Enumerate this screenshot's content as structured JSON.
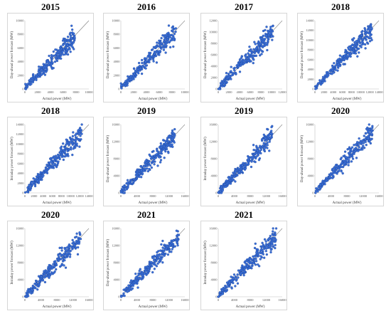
{
  "colors": {
    "point_fill": "#3a6fd8",
    "point_stroke": "#1b3f8f",
    "diagonal": "#808080",
    "axis": "#bfbfbf"
  },
  "chart_data": [
    {
      "type": "scatter",
      "title": "2015",
      "xlabel": "Actual power (MW)",
      "ylabel": "Day-ahead power forecast (MW)",
      "xlim": [
        0,
        10000
      ],
      "ylim": [
        0,
        10000
      ],
      "xticks": [
        "0",
        "2000",
        "4000",
        "6000",
        "8000",
        "10000"
      ],
      "yticks": [
        "0",
        "2000",
        "4000",
        "6000",
        "8000",
        "10000"
      ],
      "data_max": 7800,
      "series": [
        {
          "name": "",
          "points": [
            [
              0,
              200
            ],
            [
              1000,
              1150
            ],
            [
              2000,
              2100
            ],
            [
              3000,
              3050
            ],
            [
              4000,
              4100
            ],
            [
              5000,
              5000
            ],
            [
              6000,
              5900
            ],
            [
              7000,
              6900
            ],
            [
              7800,
              7600
            ]
          ]
        }
      ],
      "reference_line": [
        [
          0,
          0
        ],
        [
          10000,
          10000
        ]
      ]
    },
    {
      "type": "scatter",
      "title": "2016",
      "xlabel": "Actual power (MW)",
      "ylabel": "Day-ahead power forecast (MW)",
      "xlim": [
        0,
        10000
      ],
      "ylim": [
        0,
        10000
      ],
      "xticks": [
        "0",
        "2000",
        "4000",
        "6000",
        "8000",
        "10000"
      ],
      "yticks": [
        "0",
        "2000",
        "4000",
        "6000",
        "8000",
        "10000"
      ],
      "data_max": 8600,
      "series": [
        {
          "name": "",
          "points": [
            [
              0,
              300
            ],
            [
              1000,
              1300
            ],
            [
              2000,
              2200
            ],
            [
              3000,
              3100
            ],
            [
              4000,
              4000
            ],
            [
              5000,
              5100
            ],
            [
              6000,
              6100
            ],
            [
              7000,
              7000
            ],
            [
              8600,
              8400
            ]
          ]
        }
      ],
      "reference_line": [
        [
          0,
          0
        ],
        [
          10000,
          10000
        ]
      ]
    },
    {
      "type": "scatter",
      "title": "2017",
      "xlabel": "Actual power (MW)",
      "ylabel": "Day-ahead power forecast (MW)",
      "xlim": [
        0,
        12000
      ],
      "ylim": [
        0,
        12000
      ],
      "xticks": [
        "0",
        "2000",
        "4000",
        "6000",
        "8000",
        "10000",
        "12000"
      ],
      "yticks": [
        "0",
        "2000",
        "4000",
        "6000",
        "8000",
        "10000",
        "12000"
      ],
      "data_max": 10300,
      "series": [
        {
          "name": "",
          "points": [
            [
              0,
              200
            ],
            [
              2000,
              2100
            ],
            [
              4000,
              4000
            ],
            [
              6000,
              6000
            ],
            [
              8000,
              8000
            ],
            [
              10300,
              10100
            ]
          ]
        }
      ],
      "reference_line": [
        [
          0,
          0
        ],
        [
          12000,
          12000
        ]
      ]
    },
    {
      "type": "scatter",
      "title": "2018",
      "xlabel": "Actual power (MW)",
      "ylabel": "Day-ahead power forecast (MW)",
      "xlim": [
        0,
        14000
      ],
      "ylim": [
        0,
        14000
      ],
      "xticks": [
        "0",
        "2000",
        "4000",
        "6000",
        "8000",
        "10000",
        "12000",
        "14000"
      ],
      "yticks": [
        "0",
        "2000",
        "4000",
        "6000",
        "8000",
        "10000",
        "12000",
        "14000"
      ],
      "data_max": 12500,
      "series": [
        {
          "name": "",
          "points": [
            [
              0,
              300
            ],
            [
              2000,
              2100
            ],
            [
              4000,
              4100
            ],
            [
              6000,
              6000
            ],
            [
              8000,
              8200
            ],
            [
              10000,
              10000
            ],
            [
              12500,
              12200
            ]
          ]
        }
      ],
      "reference_line": [
        [
          0,
          0
        ],
        [
          14000,
          14000
        ]
      ]
    },
    {
      "type": "scatter",
      "title": "2018",
      "xlabel": "Actual power (MW)",
      "ylabel": "Intraday power forecast (MW)",
      "xlim": [
        0,
        14000
      ],
      "ylim": [
        0,
        14000
      ],
      "xticks": [
        "0",
        "2000",
        "4000",
        "6000",
        "8000",
        "10000",
        "12000",
        "14000"
      ],
      "yticks": [
        "0",
        "2000",
        "4000",
        "6000",
        "8000",
        "10000",
        "12000",
        "14000"
      ],
      "data_max": 12500,
      "series": [
        {
          "name": "",
          "points": [
            [
              0,
              200
            ],
            [
              2000,
              2100
            ],
            [
              4000,
              4000
            ],
            [
              6000,
              6000
            ],
            [
              8000,
              8000
            ],
            [
              10000,
              10000
            ],
            [
              12500,
              12400
            ]
          ]
        }
      ],
      "reference_line": [
        [
          0,
          0
        ],
        [
          14000,
          14000
        ]
      ]
    },
    {
      "type": "scatter",
      "title": "2019",
      "xlabel": "Actual power (MW)",
      "ylabel": "Day-ahead power forecast (MW)",
      "xlim": [
        0,
        16000
      ],
      "ylim": [
        0,
        16000
      ],
      "xticks": [
        "0",
        "4000",
        "8000",
        "12000",
        "16000"
      ],
      "yticks": [
        "0",
        "4000",
        "8000",
        "12000",
        "16000"
      ],
      "data_max": 13500,
      "series": [
        {
          "name": "",
          "points": [
            [
              0,
              300
            ],
            [
              4000,
              4100
            ],
            [
              8000,
              8000
            ],
            [
              12000,
              12000
            ],
            [
              13500,
              13300
            ]
          ]
        }
      ],
      "reference_line": [
        [
          0,
          0
        ],
        [
          16000,
          16000
        ]
      ]
    },
    {
      "type": "scatter",
      "title": "2019",
      "xlabel": "Actual power (MW)",
      "ylabel": "Intraday power forecast (MW)",
      "xlim": [
        0,
        16000
      ],
      "ylim": [
        0,
        16000
      ],
      "xticks": [
        "0",
        "4000",
        "8000",
        "12000",
        "16000"
      ],
      "yticks": [
        "0",
        "4000",
        "8000",
        "12000",
        "16000"
      ],
      "data_max": 13500,
      "series": [
        {
          "name": "",
          "points": [
            [
              0,
              200
            ],
            [
              4000,
              4000
            ],
            [
              8000,
              8000
            ],
            [
              12000,
              12000
            ],
            [
              13500,
              13400
            ]
          ]
        }
      ],
      "reference_line": [
        [
          0,
          0
        ],
        [
          16000,
          16000
        ]
      ]
    },
    {
      "type": "scatter",
      "title": "2020",
      "xlabel": "Actual power (MW)",
      "ylabel": "Day-ahead power forecast (MW)",
      "xlim": [
        0,
        16000
      ],
      "ylim": [
        0,
        16000
      ],
      "xticks": [
        "0",
        "4000",
        "8000",
        "12000",
        "16000"
      ],
      "yticks": [
        "0",
        "4000",
        "8000",
        "12000",
        "16000"
      ],
      "data_max": 14500,
      "series": [
        {
          "name": "",
          "points": [
            [
              0,
              400
            ],
            [
              4000,
              4200
            ],
            [
              8000,
              8000
            ],
            [
              12000,
              12200
            ],
            [
              14500,
              14000
            ]
          ]
        }
      ],
      "reference_line": [
        [
          0,
          0
        ],
        [
          16000,
          16000
        ]
      ]
    },
    {
      "type": "scatter",
      "title": "2020",
      "xlabel": "Actual power (MW)",
      "ylabel": "Intraday power forecast (MW)",
      "xlim": [
        0,
        16000
      ],
      "ylim": [
        0,
        16000
      ],
      "xticks": [
        "0",
        "4000",
        "8000",
        "12000",
        "16000"
      ],
      "yticks": [
        "0",
        "4000",
        "8000",
        "12000",
        "16000"
      ],
      "data_max": 14000,
      "series": [
        {
          "name": "",
          "points": [
            [
              0,
              200
            ],
            [
              4000,
              4000
            ],
            [
              8000,
              8100
            ],
            [
              12000,
              12000
            ],
            [
              14000,
              13800
            ]
          ]
        }
      ],
      "reference_line": [
        [
          0,
          0
        ],
        [
          16000,
          16000
        ]
      ]
    },
    {
      "type": "scatter",
      "title": "2021",
      "xlabel": "Actual power (MW)",
      "ylabel": "Day-ahead power forecast (MW)",
      "xlim": [
        0,
        16000
      ],
      "ylim": [
        0,
        16000
      ],
      "xticks": [
        "0",
        "4000",
        "8000",
        "12000",
        "16000"
      ],
      "yticks": [
        "0",
        "4000",
        "8000",
        "12000",
        "16000"
      ],
      "data_max": 14500,
      "series": [
        {
          "name": "",
          "points": [
            [
              0,
              400
            ],
            [
              4000,
              4200
            ],
            [
              8000,
              8000
            ],
            [
              12000,
              12100
            ],
            [
              14500,
              14200
            ]
          ]
        }
      ],
      "reference_line": [
        [
          0,
          0
        ],
        [
          16000,
          16000
        ]
      ]
    },
    {
      "type": "scatter",
      "title": "2021",
      "xlabel": "Actual power (MW)",
      "ylabel": "Intraday power forecast (MW)",
      "xlim": [
        0,
        16000
      ],
      "ylim": [
        0,
        16000
      ],
      "xticks": [
        "0",
        "4000",
        "8000",
        "12000",
        "16000"
      ],
      "yticks": [
        "0",
        "4000",
        "8000",
        "12000",
        "16000"
      ],
      "data_max": 14500,
      "series": [
        {
          "name": "",
          "points": [
            [
              0,
              200
            ],
            [
              4000,
              4000
            ],
            [
              8000,
              8000
            ],
            [
              12000,
              12000
            ],
            [
              14500,
              14300
            ]
          ]
        }
      ],
      "reference_line": [
        [
          0,
          0
        ],
        [
          16000,
          16000
        ]
      ]
    }
  ]
}
